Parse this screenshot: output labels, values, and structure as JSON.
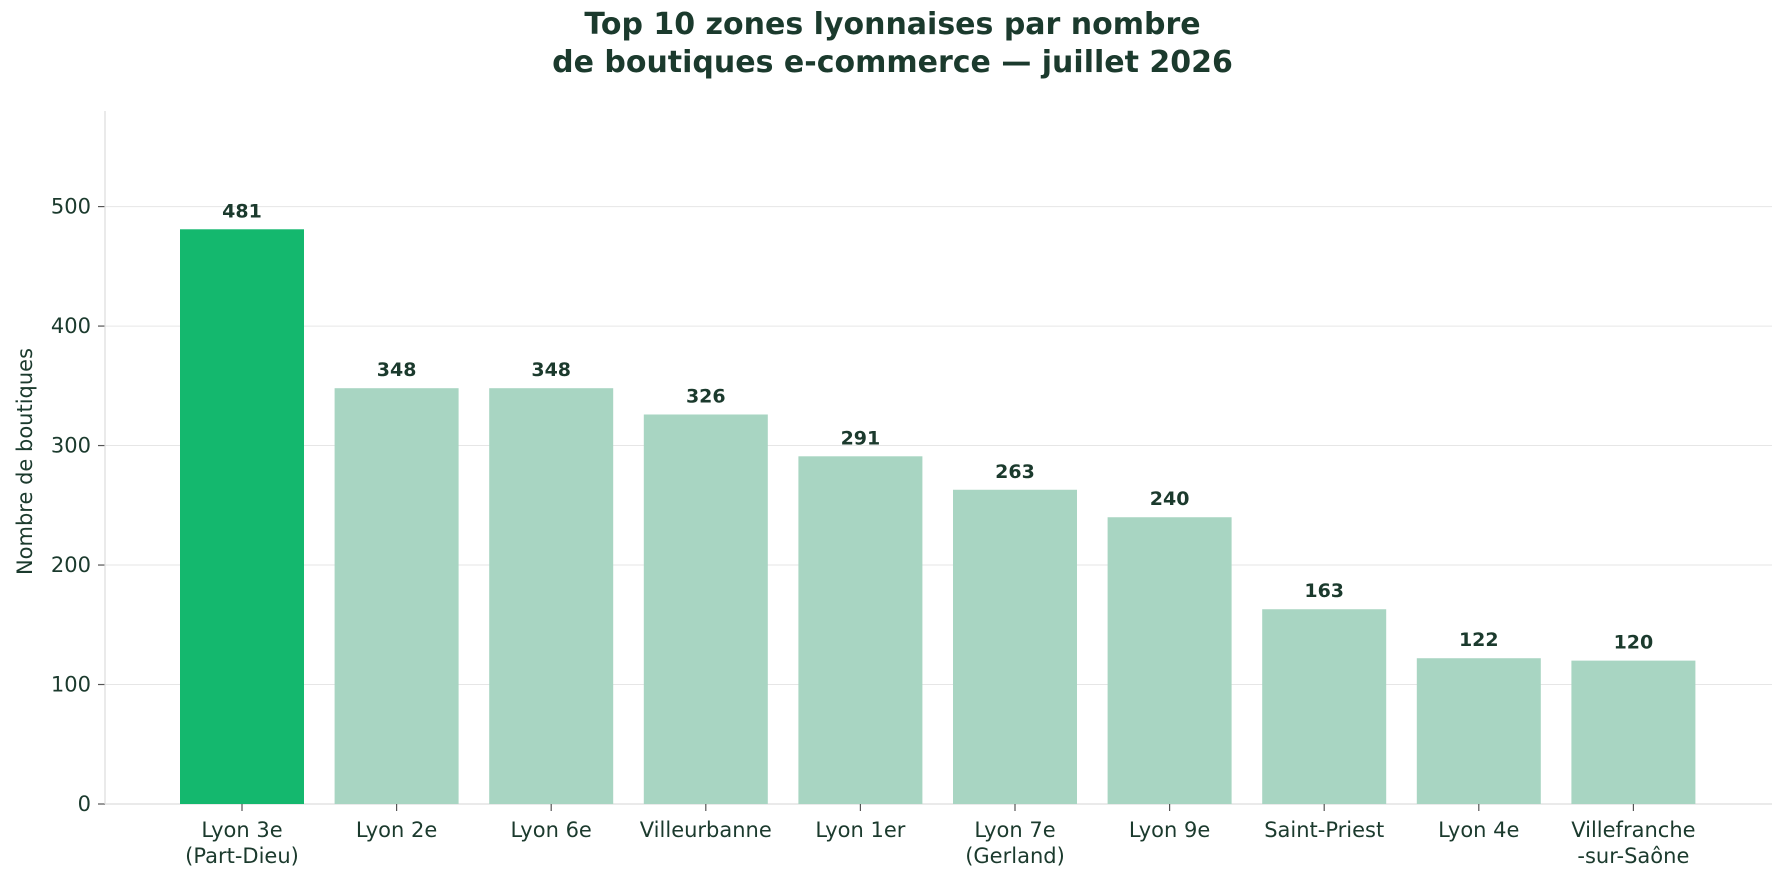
{
  "chart_data": {
    "type": "bar",
    "title_lines": [
      "Top 10 zones lyonnaises par nombre",
      "de boutiques e-commerce — juillet 2026"
    ],
    "xlabel": "",
    "ylabel": "Nombre de boutiques",
    "categories": [
      [
        "Lyon 3e",
        "(Part-Dieu)"
      ],
      [
        "Lyon 2e"
      ],
      [
        "Lyon 6e"
      ],
      [
        "Villeurbanne"
      ],
      [
        "Lyon 1er"
      ],
      [
        "Lyon 7e",
        "(Gerland)"
      ],
      [
        "Lyon 9e"
      ],
      [
        "Saint-Priest"
      ],
      [
        "Lyon 4e"
      ],
      [
        "Villefranche",
        "-sur-Saône"
      ]
    ],
    "values": [
      481,
      348,
      348,
      326,
      291,
      263,
      240,
      163,
      122,
      120
    ],
    "data_labels": [
      "481",
      "348",
      "348",
      "326",
      "291",
      "263",
      "240",
      "163",
      "122",
      "120"
    ],
    "ylim": [
      0,
      580
    ],
    "yticks": [
      0,
      100,
      200,
      300,
      400,
      500
    ],
    "ytick_labels": [
      "0",
      "100",
      "200",
      "300",
      "400",
      "500"
    ],
    "highlight_index": 0,
    "grid": "horizontal",
    "colors": {
      "highlight": "#14b86e",
      "bar": "#a8d5c2",
      "text": "#1b3a2d",
      "grid": "#e6e6e6",
      "axis": "#dddddd"
    }
  }
}
